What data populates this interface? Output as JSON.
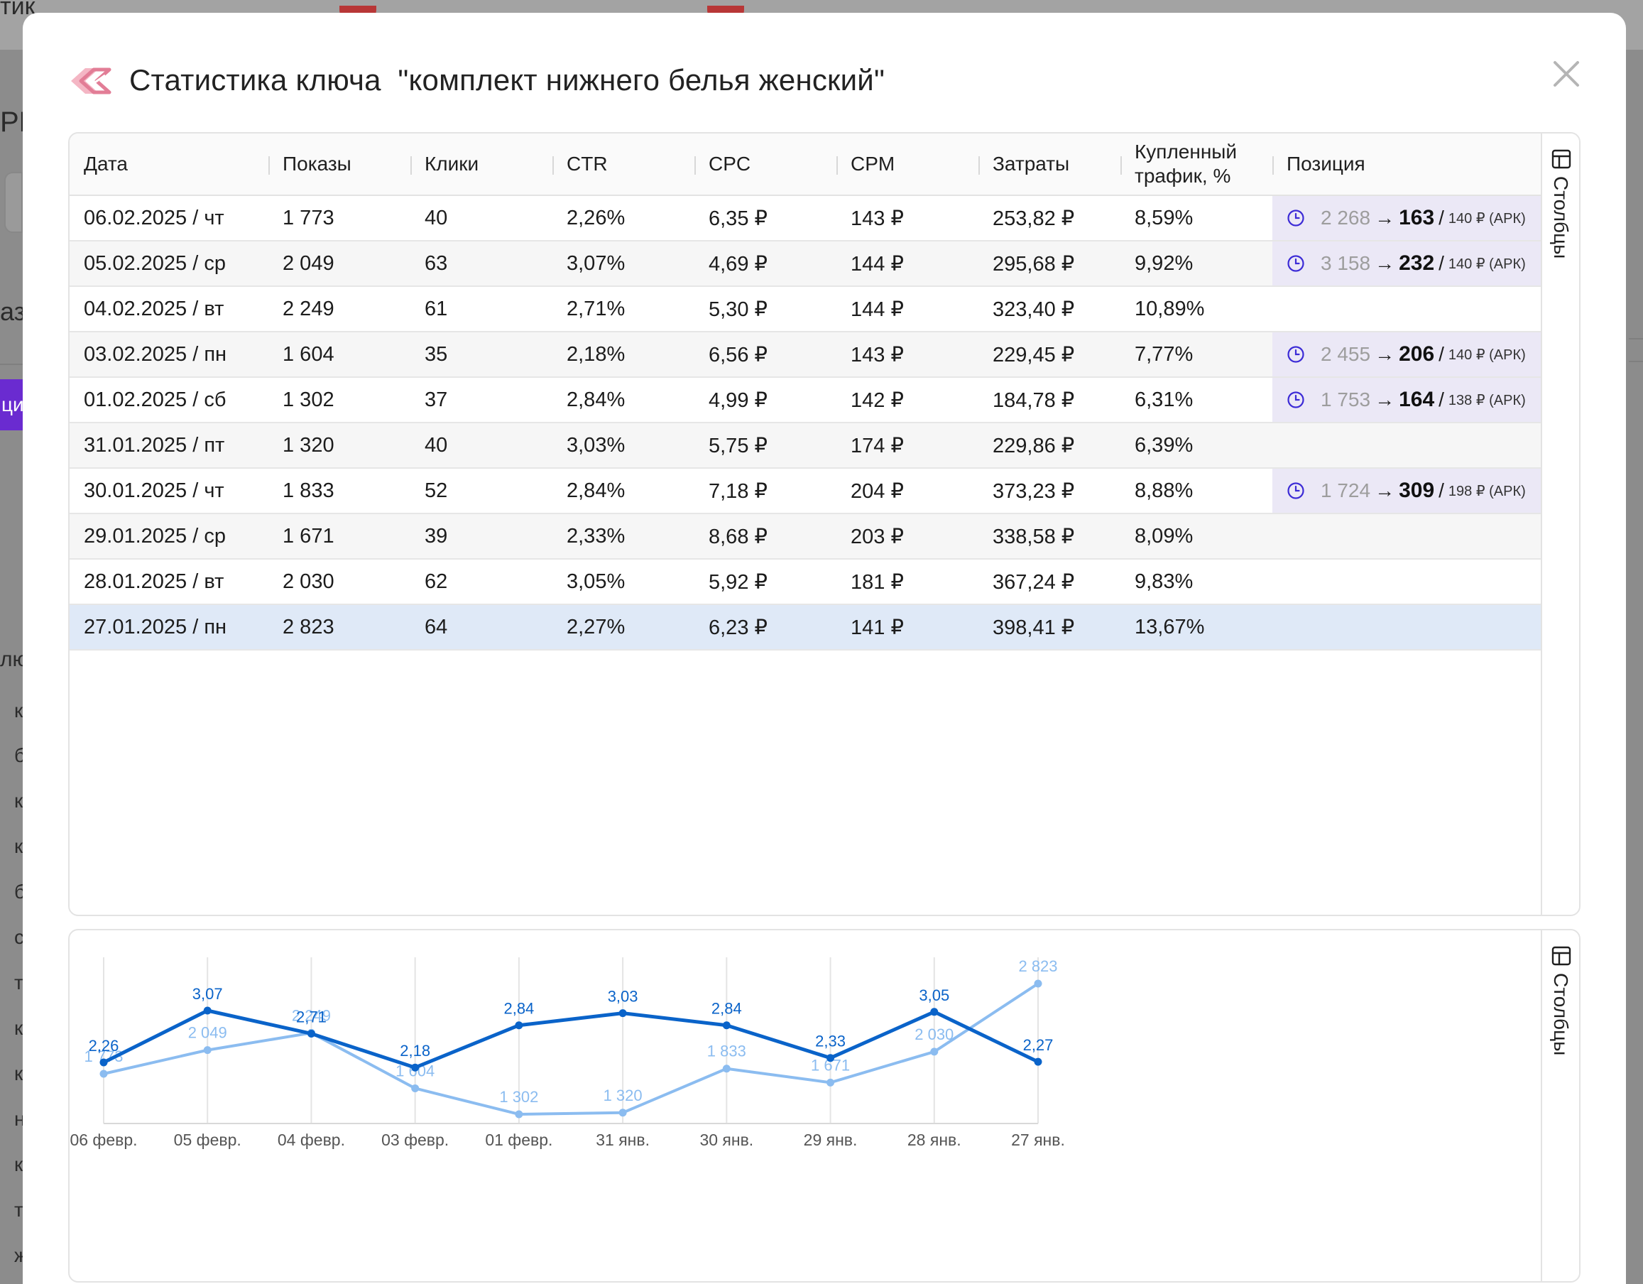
{
  "background": {
    "left_texts": [
      "тик",
      "РК",
      "аз",
      "ци",
      "лю",
      "к",
      "б",
      "к",
      "к",
      "б",
      "с",
      "т",
      "к",
      "к",
      "н",
      "к",
      "т",
      "ж"
    ]
  },
  "modal": {
    "title_prefix": "Статистика ключа",
    "title_key": "\"комплект нижнего белья женский\"",
    "close_icon": "close-icon"
  },
  "table": {
    "columns": [
      "Дата",
      "Показы",
      "Клики",
      "CTR",
      "CPC",
      "CPM",
      "Затраты",
      "Купленный трафик, %",
      "Позиция"
    ],
    "rows": [
      {
        "date": "06.02.2025 / чт",
        "shows": "1 773",
        "clicks": "40",
        "ctr": "2,26%",
        "cpc": "6,35 ₽",
        "cpm": "143 ₽",
        "cost": "253,82 ₽",
        "traffic": "8,59%",
        "pos_from": "2 268",
        "pos_to": "163",
        "pos_bid": "140 ₽ (АРК)"
      },
      {
        "date": "05.02.2025 / ср",
        "shows": "2 049",
        "clicks": "63",
        "ctr": "3,07%",
        "cpc": "4,69 ₽",
        "cpm": "144 ₽",
        "cost": "295,68 ₽",
        "traffic": "9,92%",
        "pos_from": "3 158",
        "pos_to": "232",
        "pos_bid": "140 ₽ (АРК)"
      },
      {
        "date": "04.02.2025 / вт",
        "shows": "2 249",
        "clicks": "61",
        "ctr": "2,71%",
        "cpc": "5,30 ₽",
        "cpm": "144 ₽",
        "cost": "323,40 ₽",
        "traffic": "10,89%",
        "pos_from": "",
        "pos_to": "",
        "pos_bid": ""
      },
      {
        "date": "03.02.2025 / пн",
        "shows": "1 604",
        "clicks": "35",
        "ctr": "2,18%",
        "cpc": "6,56 ₽",
        "cpm": "143 ₽",
        "cost": "229,45 ₽",
        "traffic": "7,77%",
        "pos_from": "2 455",
        "pos_to": "206",
        "pos_bid": "140 ₽ (АРК)"
      },
      {
        "date": "01.02.2025 / сб",
        "shows": "1 302",
        "clicks": "37",
        "ctr": "2,84%",
        "cpc": "4,99 ₽",
        "cpm": "142 ₽",
        "cost": "184,78 ₽",
        "traffic": "6,31%",
        "pos_from": "1 753",
        "pos_to": "164",
        "pos_bid": "138 ₽ (АРК)"
      },
      {
        "date": "31.01.2025 / пт",
        "shows": "1 320",
        "clicks": "40",
        "ctr": "3,03%",
        "cpc": "5,75 ₽",
        "cpm": "174 ₽",
        "cost": "229,86 ₽",
        "traffic": "6,39%",
        "pos_from": "",
        "pos_to": "",
        "pos_bid": ""
      },
      {
        "date": "30.01.2025 / чт",
        "shows": "1 833",
        "clicks": "52",
        "ctr": "2,84%",
        "cpc": "7,18 ₽",
        "cpm": "204 ₽",
        "cost": "373,23 ₽",
        "traffic": "8,88%",
        "pos_from": "1 724",
        "pos_to": "309",
        "pos_bid": "198 ₽ (АРК)"
      },
      {
        "date": "29.01.2025 / ср",
        "shows": "1 671",
        "clicks": "39",
        "ctr": "2,33%",
        "cpc": "8,68 ₽",
        "cpm": "203 ₽",
        "cost": "338,58 ₽",
        "traffic": "8,09%",
        "pos_from": "",
        "pos_to": "",
        "pos_bid": ""
      },
      {
        "date": "28.01.2025 / вт",
        "shows": "2 030",
        "clicks": "62",
        "ctr": "3,05%",
        "cpc": "5,92 ₽",
        "cpm": "181 ₽",
        "cost": "367,24 ₽",
        "traffic": "9,83%",
        "pos_from": "",
        "pos_to": "",
        "pos_bid": ""
      },
      {
        "date": "27.01.2025 / пн",
        "shows": "2 823",
        "clicks": "64",
        "ctr": "2,27%",
        "cpc": "6,23 ₽",
        "cpm": "141 ₽",
        "cost": "398,41 ₽",
        "traffic": "13,67%",
        "pos_from": "",
        "pos_to": "",
        "pos_bid": ""
      }
    ],
    "columns_tab_label": "Столбцы"
  },
  "chart_tab_label": "Столбцы",
  "colors": {
    "ctr_line": "#0a63c9",
    "shows_line": "#8bbcf0",
    "position_bg": "#ebe8f6",
    "selected_row": "#dfe9f7",
    "clock_icon": "#3c2bd6"
  },
  "chart_data": {
    "type": "line",
    "categories": [
      "06 февр.",
      "05 февр.",
      "04 февр.",
      "03 февр.",
      "01 февр.",
      "31 янв.",
      "30 янв.",
      "29 янв.",
      "28 янв.",
      "27 янв."
    ],
    "series": [
      {
        "key": "ctr",
        "values": [
          2.26,
          3.07,
          2.71,
          2.18,
          2.84,
          3.03,
          2.84,
          2.33,
          3.05,
          2.27
        ],
        "labels": [
          "2,26",
          "3,07",
          "2,71",
          "2,18",
          "2,84",
          "3,03",
          "2,84",
          "2,33",
          "3,05",
          "2,27"
        ]
      },
      {
        "key": "shows",
        "values": [
          1773,
          2049,
          2249,
          1604,
          1302,
          1320,
          1833,
          1671,
          2030,
          2823
        ],
        "labels": [
          "1 773",
          "2 049",
          "2 249",
          "1 604",
          "1 302",
          "1 320",
          "1 833",
          "1 671",
          "2 030",
          "2 823"
        ]
      }
    ]
  }
}
